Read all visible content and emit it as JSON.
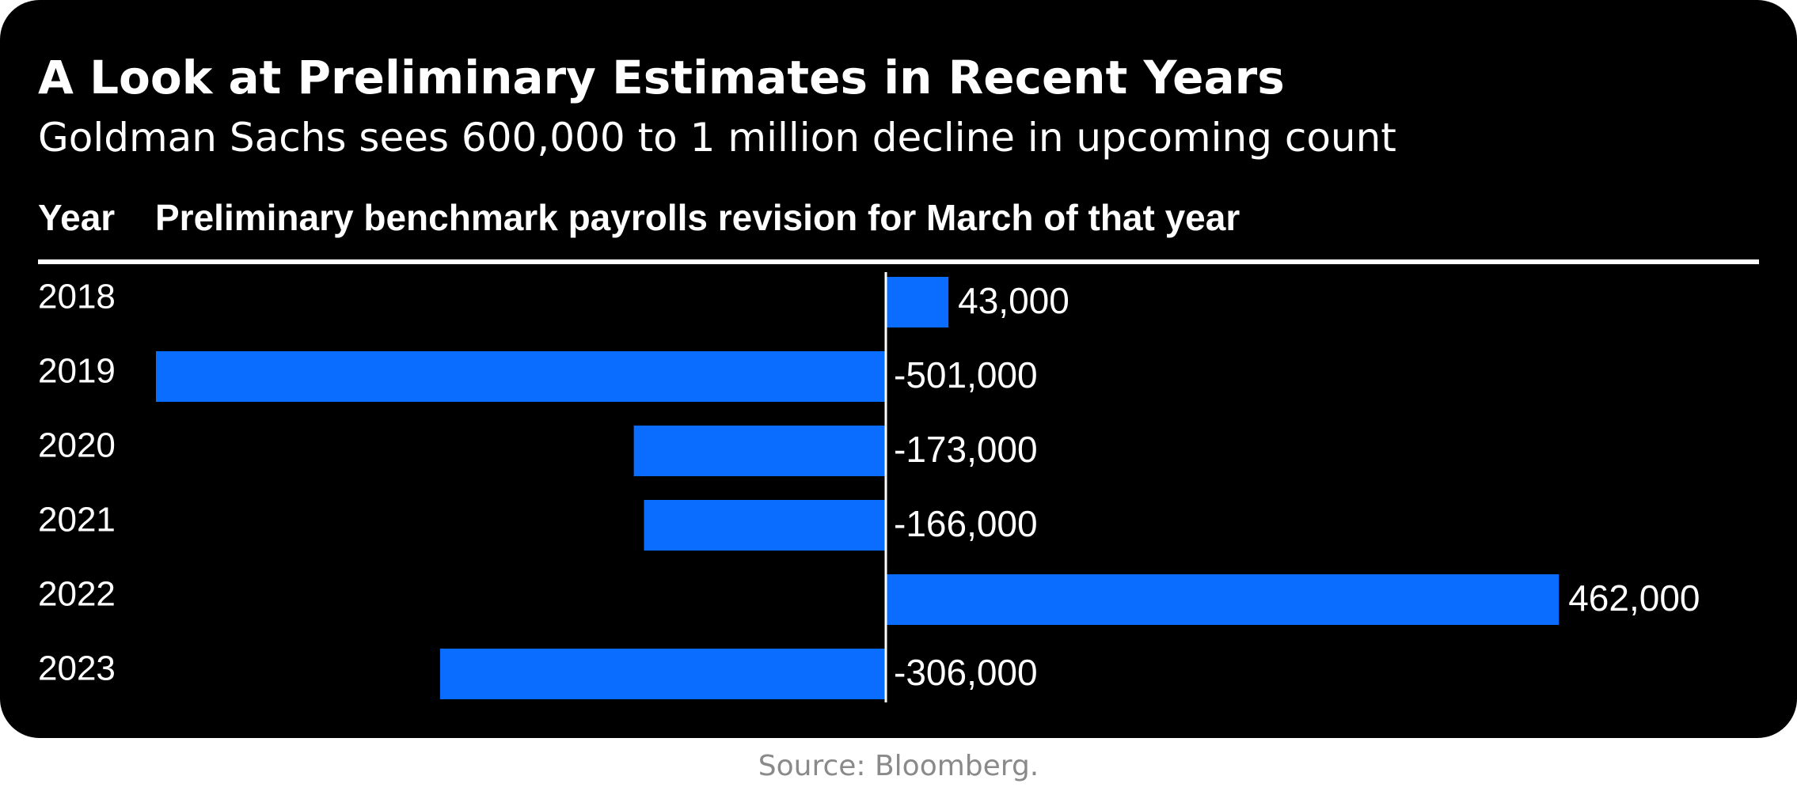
{
  "chart_data": {
    "type": "bar",
    "orientation": "horizontal",
    "title": "A Look at Preliminary Estimates in Recent Years",
    "subtitle": "Goldman Sachs sees 600,000 to 1 million decline in upcoming count",
    "column_headers": {
      "category": "Year",
      "value": "Preliminary benchmark payrolls revision for March of that year"
    },
    "categories": [
      "2018",
      "2019",
      "2020",
      "2021",
      "2022",
      "2023"
    ],
    "values": [
      43000,
      -501000,
      -173000,
      -166000,
      462000,
      -306000
    ],
    "data_labels": [
      "43,000",
      "-501,000",
      "-173,000",
      "-166,000",
      "462,000",
      "-306,000"
    ],
    "bar_color": "#0b6dff",
    "background_color": "#000000",
    "text_color": "#ffffff",
    "grid": false,
    "legend": "none"
  },
  "source": "Source: Bloomberg."
}
